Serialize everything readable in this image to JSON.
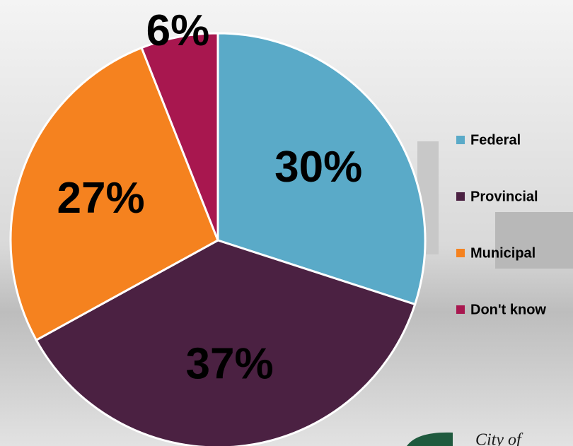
{
  "chart_data": {
    "type": "pie",
    "categories": [
      "Federal",
      "Provincial",
      "Municipal",
      "Don't know"
    ],
    "values": [
      30,
      37,
      27,
      6
    ],
    "value_labels": [
      "30%",
      "37%",
      "27%",
      "6%"
    ],
    "colors": [
      "#5aaac8",
      "#4b2142",
      "#f5821f",
      "#a8174f"
    ],
    "legend": "right"
  },
  "logo": {
    "text": "City of"
  }
}
